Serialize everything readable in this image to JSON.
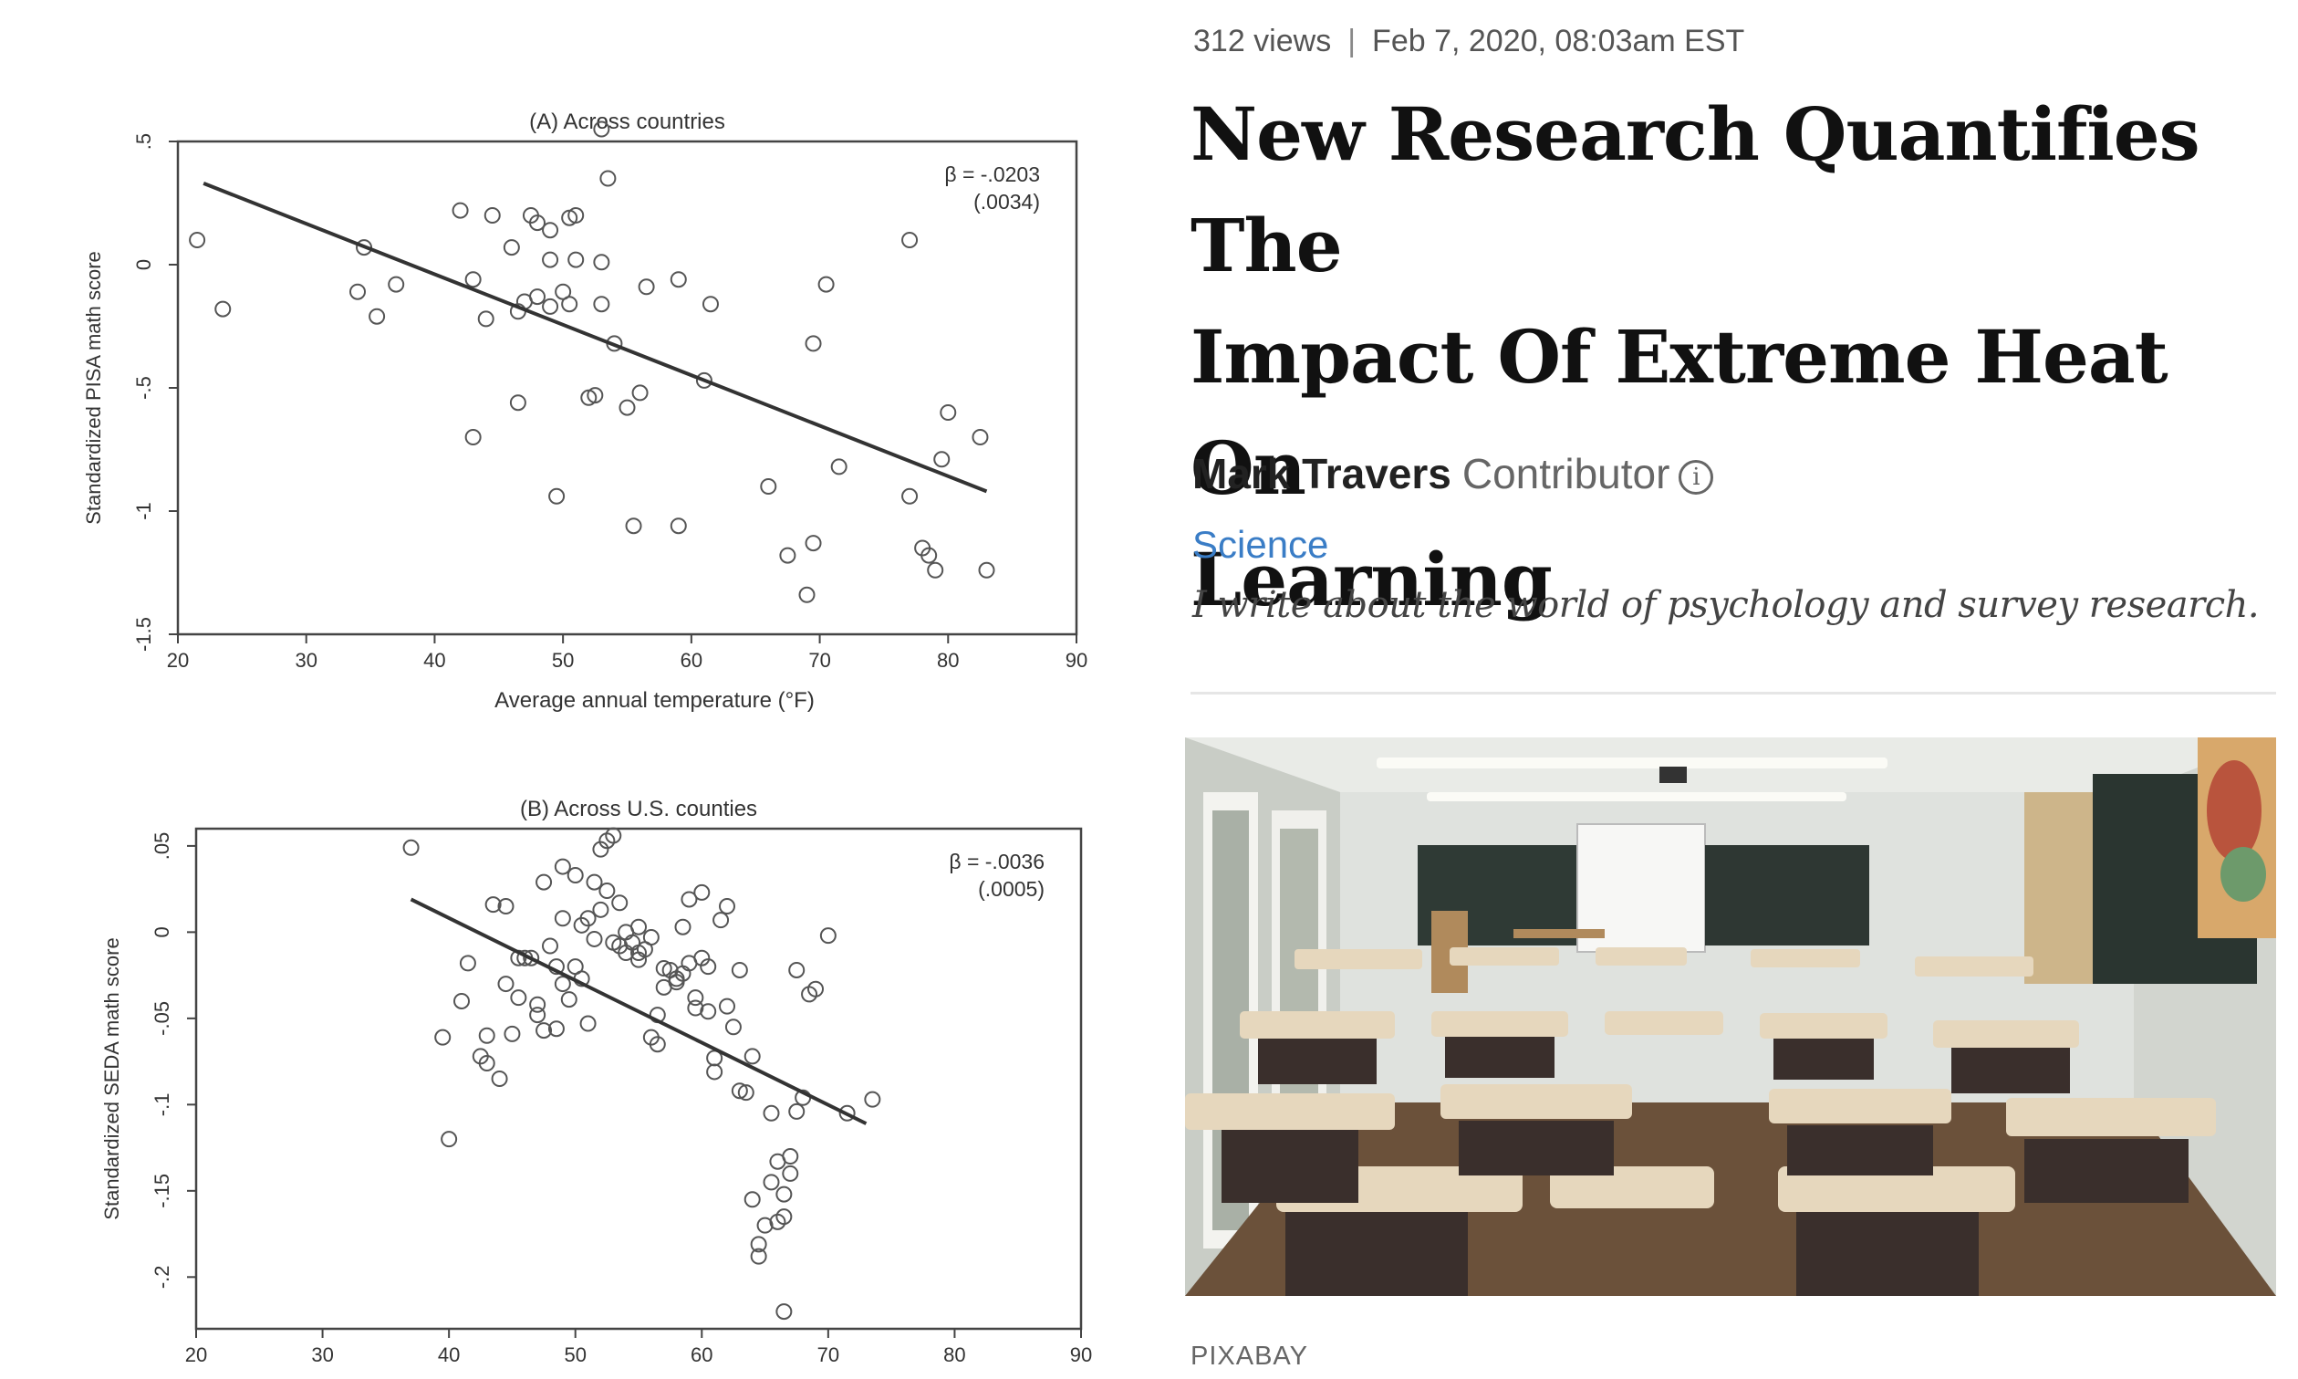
{
  "article": {
    "views": "312 views",
    "separator": "|",
    "date": "Feb 7, 2020, 08:03am EST",
    "title": "New Research Quantifies The Impact Of Extreme Heat On Learning",
    "title_lines": [
      "New Research Quantifies The",
      "Impact Of Extreme Heat On",
      "Learning"
    ],
    "author": "Mark Travers",
    "role": "Contributor",
    "info_glyph": "i",
    "section": "Science",
    "tagline": "I write about the world of psychology and survey research.",
    "photo_credit": "PIXABAY",
    "photo_icon": "classroom-photo",
    "accent_color": "#3a7dc6"
  },
  "chart_data": [
    {
      "type": "scatter",
      "title": "(A) Across countries",
      "xlabel": "Average annual temperature (°F)",
      "ylabel": "Standardized PISA math score",
      "xlim": [
        20,
        90
      ],
      "ylim": [
        -1.5,
        0.5
      ],
      "xticks": [
        20,
        30,
        40,
        50,
        60,
        70,
        80,
        90
      ],
      "yticks": [
        0.5,
        0,
        -0.5,
        -1,
        -1.5
      ],
      "ytick_labels": [
        ".5",
        "0",
        "-.5",
        "-1",
        "-1.5"
      ],
      "annotation": [
        "β = -.0203",
        "(.0034)"
      ],
      "fit_line": [
        [
          22,
          0.33
        ],
        [
          83,
          -0.92
        ]
      ],
      "points": [
        [
          21.5,
          0.1
        ],
        [
          23.5,
          -0.18
        ],
        [
          34,
          -0.11
        ],
        [
          34.5,
          0.07
        ],
        [
          35.5,
          -0.21
        ],
        [
          37,
          -0.08
        ],
        [
          42,
          0.22
        ],
        [
          43,
          -0.7
        ],
        [
          43,
          -0.06
        ],
        [
          44,
          -0.22
        ],
        [
          44.5,
          0.2
        ],
        [
          46,
          0.07
        ],
        [
          46.5,
          -0.19
        ],
        [
          46.5,
          -0.56
        ],
        [
          47,
          -0.15
        ],
        [
          47.5,
          0.2
        ],
        [
          48,
          0.17
        ],
        [
          48,
          -0.13
        ],
        [
          49,
          0.14
        ],
        [
          49,
          0.02
        ],
        [
          49,
          -0.17
        ],
        [
          49.5,
          -0.94
        ],
        [
          50,
          -0.11
        ],
        [
          50.5,
          -0.16
        ],
        [
          50.5,
          0.19
        ],
        [
          51,
          0.2
        ],
        [
          51,
          0.02
        ],
        [
          52,
          -0.54
        ],
        [
          52.5,
          -0.53
        ],
        [
          53,
          0.01
        ],
        [
          53,
          -0.16
        ],
        [
          53,
          0.55
        ],
        [
          53.5,
          0.35
        ],
        [
          54,
          -0.32
        ],
        [
          55,
          -0.58
        ],
        [
          55.5,
          -1.06
        ],
        [
          56,
          -0.52
        ],
        [
          56.5,
          -0.09
        ],
        [
          59,
          -1.06
        ],
        [
          59,
          -0.06
        ],
        [
          61,
          -0.47
        ],
        [
          61.5,
          -0.16
        ],
        [
          66,
          -0.9
        ],
        [
          67.5,
          -1.18
        ],
        [
          69,
          -1.34
        ],
        [
          69.5,
          -1.13
        ],
        [
          69.5,
          -0.32
        ],
        [
          70.5,
          -0.08
        ],
        [
          71.5,
          -0.82
        ],
        [
          77,
          0.1
        ],
        [
          77,
          -0.94
        ],
        [
          78,
          -1.15
        ],
        [
          78.5,
          -1.18
        ],
        [
          79,
          -1.24
        ],
        [
          79.5,
          -0.79
        ],
        [
          80,
          -0.6
        ],
        [
          82.5,
          -0.7
        ],
        [
          83,
          -1.24
        ]
      ]
    },
    {
      "type": "scatter",
      "title": "(B) Across U.S. counties",
      "xlabel": "",
      "ylabel": "Standardized SEDA math score",
      "xlim": [
        20,
        90
      ],
      "ylim": [
        -0.23,
        0.06
      ],
      "xticks": [
        20,
        30,
        40,
        50,
        60,
        70,
        80,
        90
      ],
      "yticks": [
        0.05,
        0,
        -0.05,
        -0.1,
        -0.15,
        -0.2
      ],
      "ytick_labels": [
        ".05",
        "0",
        "-.05",
        "-.1",
        "-.15",
        "-.2"
      ],
      "annotation": [
        "β = -.0036",
        "(.0005)"
      ],
      "fit_line": [
        [
          37,
          0.019
        ],
        [
          73,
          -0.111
        ]
      ],
      "points": [
        [
          37,
          0.049
        ],
        [
          39.5,
          -0.061
        ],
        [
          40,
          -0.12
        ],
        [
          41,
          -0.04
        ],
        [
          41.5,
          -0.018
        ],
        [
          42.5,
          -0.072
        ],
        [
          43,
          -0.076
        ],
        [
          43.5,
          0.016
        ],
        [
          44,
          -0.085
        ],
        [
          44.5,
          0.015
        ],
        [
          44.5,
          -0.03
        ],
        [
          45,
          -0.059
        ],
        [
          45.5,
          -0.015
        ],
        [
          45.5,
          -0.038
        ],
        [
          46,
          -0.015
        ],
        [
          46.5,
          -0.015
        ],
        [
          47,
          -0.042
        ],
        [
          47,
          -0.048
        ],
        [
          47.5,
          -0.057
        ],
        [
          47.5,
          0.029
        ],
        [
          48,
          -0.008
        ],
        [
          48.5,
          -0.02
        ],
        [
          48.5,
          -0.056
        ],
        [
          49,
          0.038
        ],
        [
          49,
          0.008
        ],
        [
          49.5,
          -0.039
        ],
        [
          50,
          0.033
        ],
        [
          50.5,
          0.004
        ],
        [
          50.5,
          -0.027
        ],
        [
          51,
          0.008
        ],
        [
          51,
          -0.053
        ],
        [
          51.5,
          0.029
        ],
        [
          51.5,
          -0.004
        ],
        [
          52,
          0.048
        ],
        [
          52,
          0.013
        ],
        [
          52.5,
          0.053
        ],
        [
          52.5,
          0.024
        ],
        [
          53,
          0.056
        ],
        [
          53,
          -0.006
        ],
        [
          53.5,
          0.017
        ],
        [
          53.5,
          -0.008
        ],
        [
          54,
          0.0
        ],
        [
          54,
          -0.012
        ],
        [
          54.5,
          -0.006
        ],
        [
          55,
          -0.012
        ],
        [
          55,
          0.003
        ],
        [
          55,
          -0.016
        ],
        [
          56,
          -0.003
        ],
        [
          56,
          -0.061
        ],
        [
          56.5,
          -0.048
        ],
        [
          56.5,
          -0.065
        ],
        [
          57,
          -0.021
        ],
        [
          57,
          -0.032
        ],
        [
          57.5,
          -0.022
        ],
        [
          58,
          -0.027
        ],
        [
          58,
          -0.029
        ],
        [
          58.5,
          -0.024
        ],
        [
          58.5,
          0.003
        ],
        [
          59,
          0.019
        ],
        [
          59,
          -0.018
        ],
        [
          59.5,
          -0.044
        ],
        [
          59.5,
          -0.038
        ],
        [
          60,
          0.023
        ],
        [
          60,
          -0.015
        ],
        [
          60.5,
          -0.02
        ],
        [
          60.5,
          -0.046
        ],
        [
          61,
          -0.081
        ],
        [
          61,
          -0.073
        ],
        [
          61.5,
          0.007
        ],
        [
          62,
          0.015
        ],
        [
          62,
          -0.043
        ],
        [
          62.5,
          -0.055
        ],
        [
          63,
          -0.022
        ],
        [
          63,
          -0.092
        ],
        [
          63.5,
          -0.093
        ],
        [
          64,
          -0.072
        ],
        [
          64,
          -0.155
        ],
        [
          64.5,
          -0.181
        ],
        [
          64.5,
          -0.188
        ],
        [
          65,
          -0.17
        ],
        [
          65.5,
          -0.105
        ],
        [
          65.5,
          -0.145
        ],
        [
          66,
          -0.168
        ],
        [
          66,
          -0.133
        ],
        [
          66.5,
          -0.152
        ],
        [
          66.5,
          -0.165
        ],
        [
          67,
          -0.13
        ],
        [
          67,
          -0.14
        ],
        [
          67.5,
          -0.104
        ],
        [
          67.5,
          -0.022
        ],
        [
          68,
          -0.096
        ],
        [
          68.5,
          -0.036
        ],
        [
          69,
          -0.033
        ],
        [
          70,
          -0.002
        ],
        [
          66.5,
          -0.22
        ],
        [
          71.5,
          -0.105
        ],
        [
          73.5,
          -0.097
        ],
        [
          43,
          -0.06
        ],
        [
          49,
          -0.03
        ],
        [
          50,
          -0.02
        ],
        [
          55.5,
          -0.01
        ]
      ]
    }
  ]
}
